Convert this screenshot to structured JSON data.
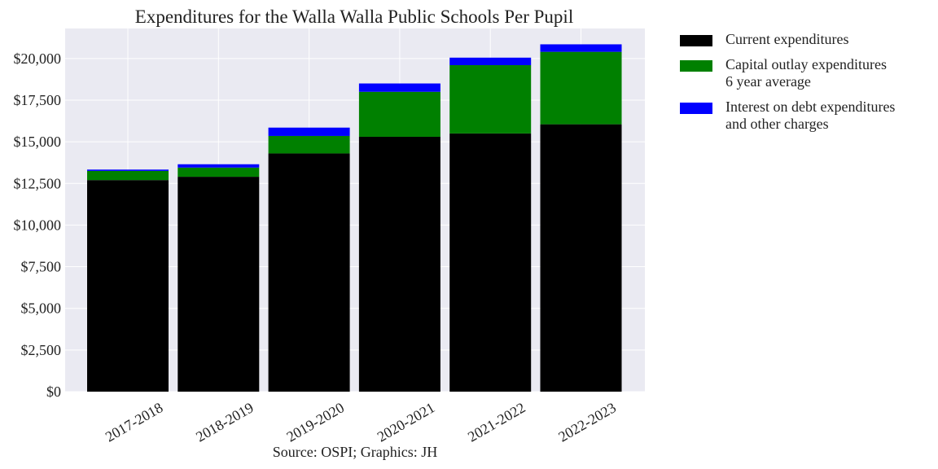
{
  "chart_data": {
    "type": "bar",
    "stacked": true,
    "title": "Expenditures for the Walla Walla Public Schools Per Pupil",
    "caption": "Source: OSPI; Graphics: JH",
    "categories": [
      "2017-2018",
      "2018-2019",
      "2019-2020",
      "2020-2021",
      "2021-2022",
      "2022-2023"
    ],
    "series": [
      {
        "name": "Current expenditures",
        "color": "#000000",
        "values": [
          12700,
          12900,
          14300,
          15300,
          15500,
          16050
        ]
      },
      {
        "name": "Capital outlay expenditures\n6 year average",
        "color": "#008000",
        "values": [
          550,
          550,
          1050,
          2700,
          4100,
          4350
        ]
      },
      {
        "name": "Interest on debt expenditures\nand other charges",
        "color": "#0000ff",
        "values": [
          80,
          200,
          500,
          500,
          450,
          450
        ]
      }
    ],
    "ylim": [
      0,
      21800
    ],
    "yticks": [
      0,
      2500,
      5000,
      7500,
      10000,
      12500,
      15000,
      17500,
      20000
    ],
    "ytick_labels": [
      "$0",
      "$2,500",
      "$5,000",
      "$7,500",
      "$10,000",
      "$12,500",
      "$15,000",
      "$17,500",
      "$20,000"
    ],
    "grid": true,
    "legend_position": "outside-right",
    "xlabel": "",
    "ylabel": ""
  }
}
